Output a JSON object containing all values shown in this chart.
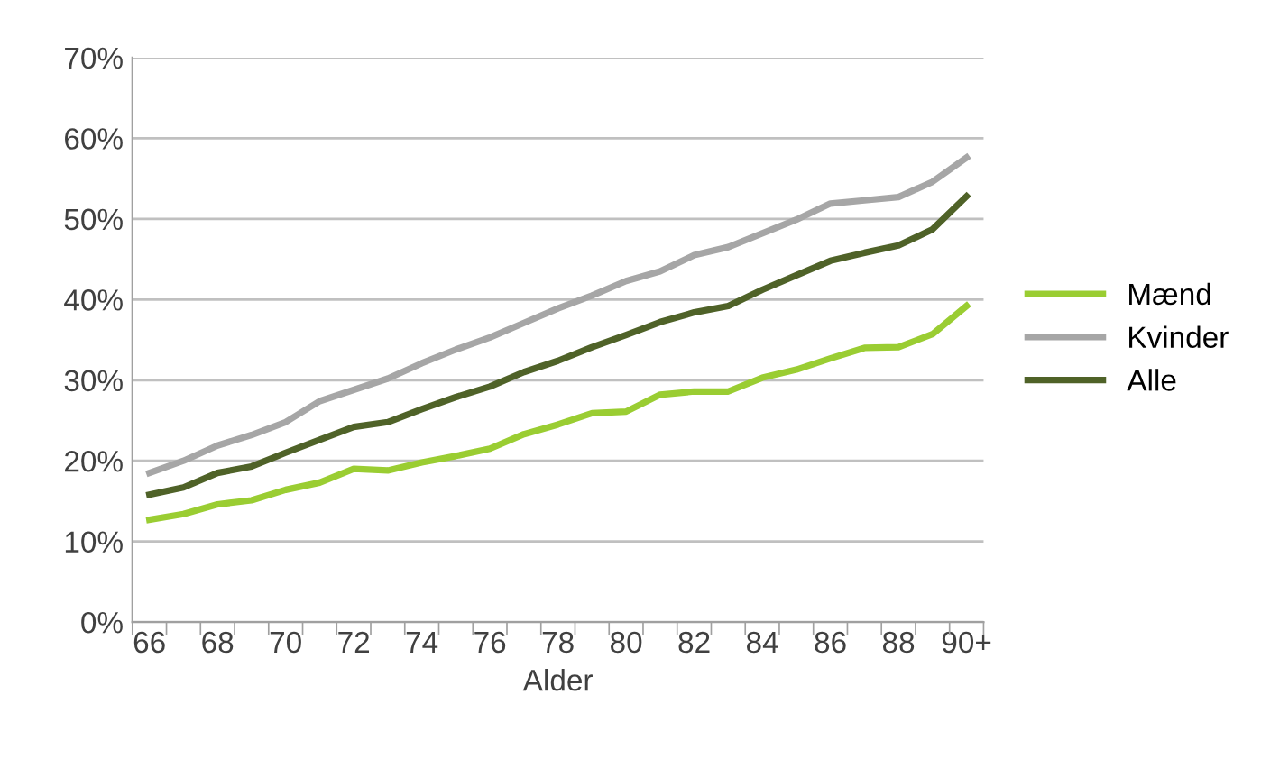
{
  "chart_data": {
    "type": "line",
    "xlabel": "Alder",
    "categories": [
      "66",
      null,
      "68",
      null,
      "70",
      null,
      "72",
      null,
      "74",
      null,
      "76",
      null,
      "78",
      null,
      "80",
      null,
      "82",
      null,
      "84",
      null,
      "86",
      null,
      "88",
      null,
      "90+"
    ],
    "series": [
      {
        "name": "Mænd",
        "color": "#9acd32",
        "values": [
          12.7,
          13.4,
          14.6,
          15.1,
          16.4,
          17.3,
          19.0,
          18.8,
          19.8,
          20.6,
          21.5,
          23.3,
          24.5,
          25.9,
          26.1,
          28.2,
          28.6,
          28.6,
          30.3,
          31.3,
          32.7,
          34.0,
          34.1,
          35.7,
          39.2
        ]
      },
      {
        "name": "Kvinder",
        "color": "#a6a6a6",
        "values": [
          18.5,
          20.0,
          21.9,
          23.2,
          24.8,
          27.4,
          28.8,
          30.2,
          32.1,
          33.8,
          35.3,
          37.1,
          38.9,
          40.5,
          42.3,
          43.5,
          45.5,
          46.5,
          48.2,
          49.9,
          51.9,
          52.3,
          52.7,
          54.6,
          57.6
        ]
      },
      {
        "name": "Alle",
        "color": "#4f6228",
        "values": [
          15.8,
          16.7,
          18.5,
          19.3,
          21.0,
          22.6,
          24.2,
          24.8,
          26.4,
          27.9,
          29.2,
          31.0,
          32.4,
          34.1,
          35.6,
          37.2,
          38.4,
          39.2,
          41.2,
          43.0,
          44.8,
          45.8,
          46.7,
          48.7,
          52.8
        ]
      }
    ],
    "ylim": [
      0,
      70
    ],
    "yticks": [
      {
        "value": 0,
        "label": "0%"
      },
      {
        "value": 10,
        "label": "10%"
      },
      {
        "value": 20,
        "label": "20%"
      },
      {
        "value": 30,
        "label": "30%"
      },
      {
        "value": 40,
        "label": "40%"
      },
      {
        "value": 50,
        "label": "50%"
      },
      {
        "value": 60,
        "label": "60%"
      },
      {
        "value": 70,
        "label": "70%"
      }
    ],
    "grid": "y",
    "legend": "right",
    "marker": "none",
    "line_style": "solid"
  }
}
